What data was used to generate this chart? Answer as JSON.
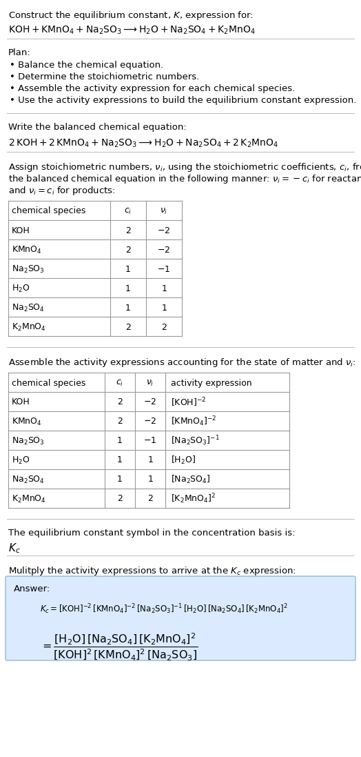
{
  "bg_color": "#ffffff",
  "text_color": "#000000",
  "title_line1": "Construct the equilibrium constant, $K$, expression for:",
  "title_line2": "$\\mathrm{KOH + KMnO_4 + Na_2SO_3 \\longrightarrow H_2O + Na_2SO_4 + K_2MnO_4}$",
  "plan_header": "Plan:",
  "plan_items": [
    "• Balance the chemical equation.",
    "• Determine the stoichiometric numbers.",
    "• Assemble the activity expression for each chemical species.",
    "• Use the activity expressions to build the equilibrium constant expression."
  ],
  "balanced_header": "Write the balanced chemical equation:",
  "balanced_eq": "$\\mathrm{2\\,KOH + 2\\,KMnO_4 + Na_2SO_3 \\longrightarrow H_2O + Na_2SO_4 + 2\\,K_2MnO_4}$",
  "stoich_lines": [
    "Assign stoichiometric numbers, $\\nu_i$, using the stoichiometric coefficients, $c_i$, from",
    "the balanced chemical equation in the following manner: $\\nu_i = -c_i$ for reactants",
    "and $\\nu_i = c_i$ for products:"
  ],
  "table1_cols": [
    "chemical species",
    "$c_i$",
    "$\\nu_i$"
  ],
  "table1_rows": [
    [
      "KOH",
      "2",
      "$-2$"
    ],
    [
      "$\\mathrm{KMnO_4}$",
      "2",
      "$-2$"
    ],
    [
      "$\\mathrm{Na_2SO_3}$",
      "1",
      "$-1$"
    ],
    [
      "$\\mathrm{H_2O}$",
      "1",
      "$1$"
    ],
    [
      "$\\mathrm{Na_2SO_4}$",
      "1",
      "$1$"
    ],
    [
      "$\\mathrm{K_2MnO_4}$",
      "2",
      "$2$"
    ]
  ],
  "activity_header": "Assemble the activity expressions accounting for the state of matter and $\\nu_i$:",
  "table2_cols": [
    "chemical species",
    "$c_i$",
    "$\\nu_i$",
    "activity expression"
  ],
  "table2_rows": [
    [
      "KOH",
      "2",
      "$-2$",
      "$[\\mathrm{KOH}]^{-2}$"
    ],
    [
      "$\\mathrm{KMnO_4}$",
      "2",
      "$-2$",
      "$[\\mathrm{KMnO_4}]^{-2}$"
    ],
    [
      "$\\mathrm{Na_2SO_3}$",
      "1",
      "$-1$",
      "$[\\mathrm{Na_2SO_3}]^{-1}$"
    ],
    [
      "$\\mathrm{H_2O}$",
      "1",
      "$1$",
      "$[\\mathrm{H_2O}]$"
    ],
    [
      "$\\mathrm{Na_2SO_4}$",
      "1",
      "$1$",
      "$[\\mathrm{Na_2SO_4}]$"
    ],
    [
      "$\\mathrm{K_2MnO_4}$",
      "2",
      "$2$",
      "$[\\mathrm{K_2MnO_4}]^{2}$"
    ]
  ],
  "kc_header": "The equilibrium constant symbol in the concentration basis is:",
  "kc_symbol": "$K_c$",
  "multiply_header": "Mulitply the activity expressions to arrive at the $K_c$ expression:",
  "answer_label": "Answer:",
  "answer_line1": "$K_c = [\\mathrm{KOH}]^{-2}\\,[\\mathrm{KMnO_4}]^{-2}\\,[\\mathrm{Na_2SO_3}]^{-1}\\,[\\mathrm{H_2O}]\\,[\\mathrm{Na_2SO_4}]\\,[\\mathrm{K_2MnO_4}]^{2}$",
  "answer_line2": "$= \\dfrac{[\\mathrm{H_2O}]\\,[\\mathrm{Na_2SO_4}]\\,[\\mathrm{K_2MnO_4}]^{2}}{[\\mathrm{KOH}]^{2}\\,[\\mathrm{KMnO_4}]^{2}\\,[\\mathrm{Na_2SO_3}]}$",
  "answer_box_color": "#dbeafe",
  "answer_box_edge": "#93b8d4",
  "table_line_color": "#999999",
  "separator_color": "#bbbbbb",
  "font_size_body": 9.5,
  "font_size_math": 10.0,
  "font_size_small": 9.0
}
